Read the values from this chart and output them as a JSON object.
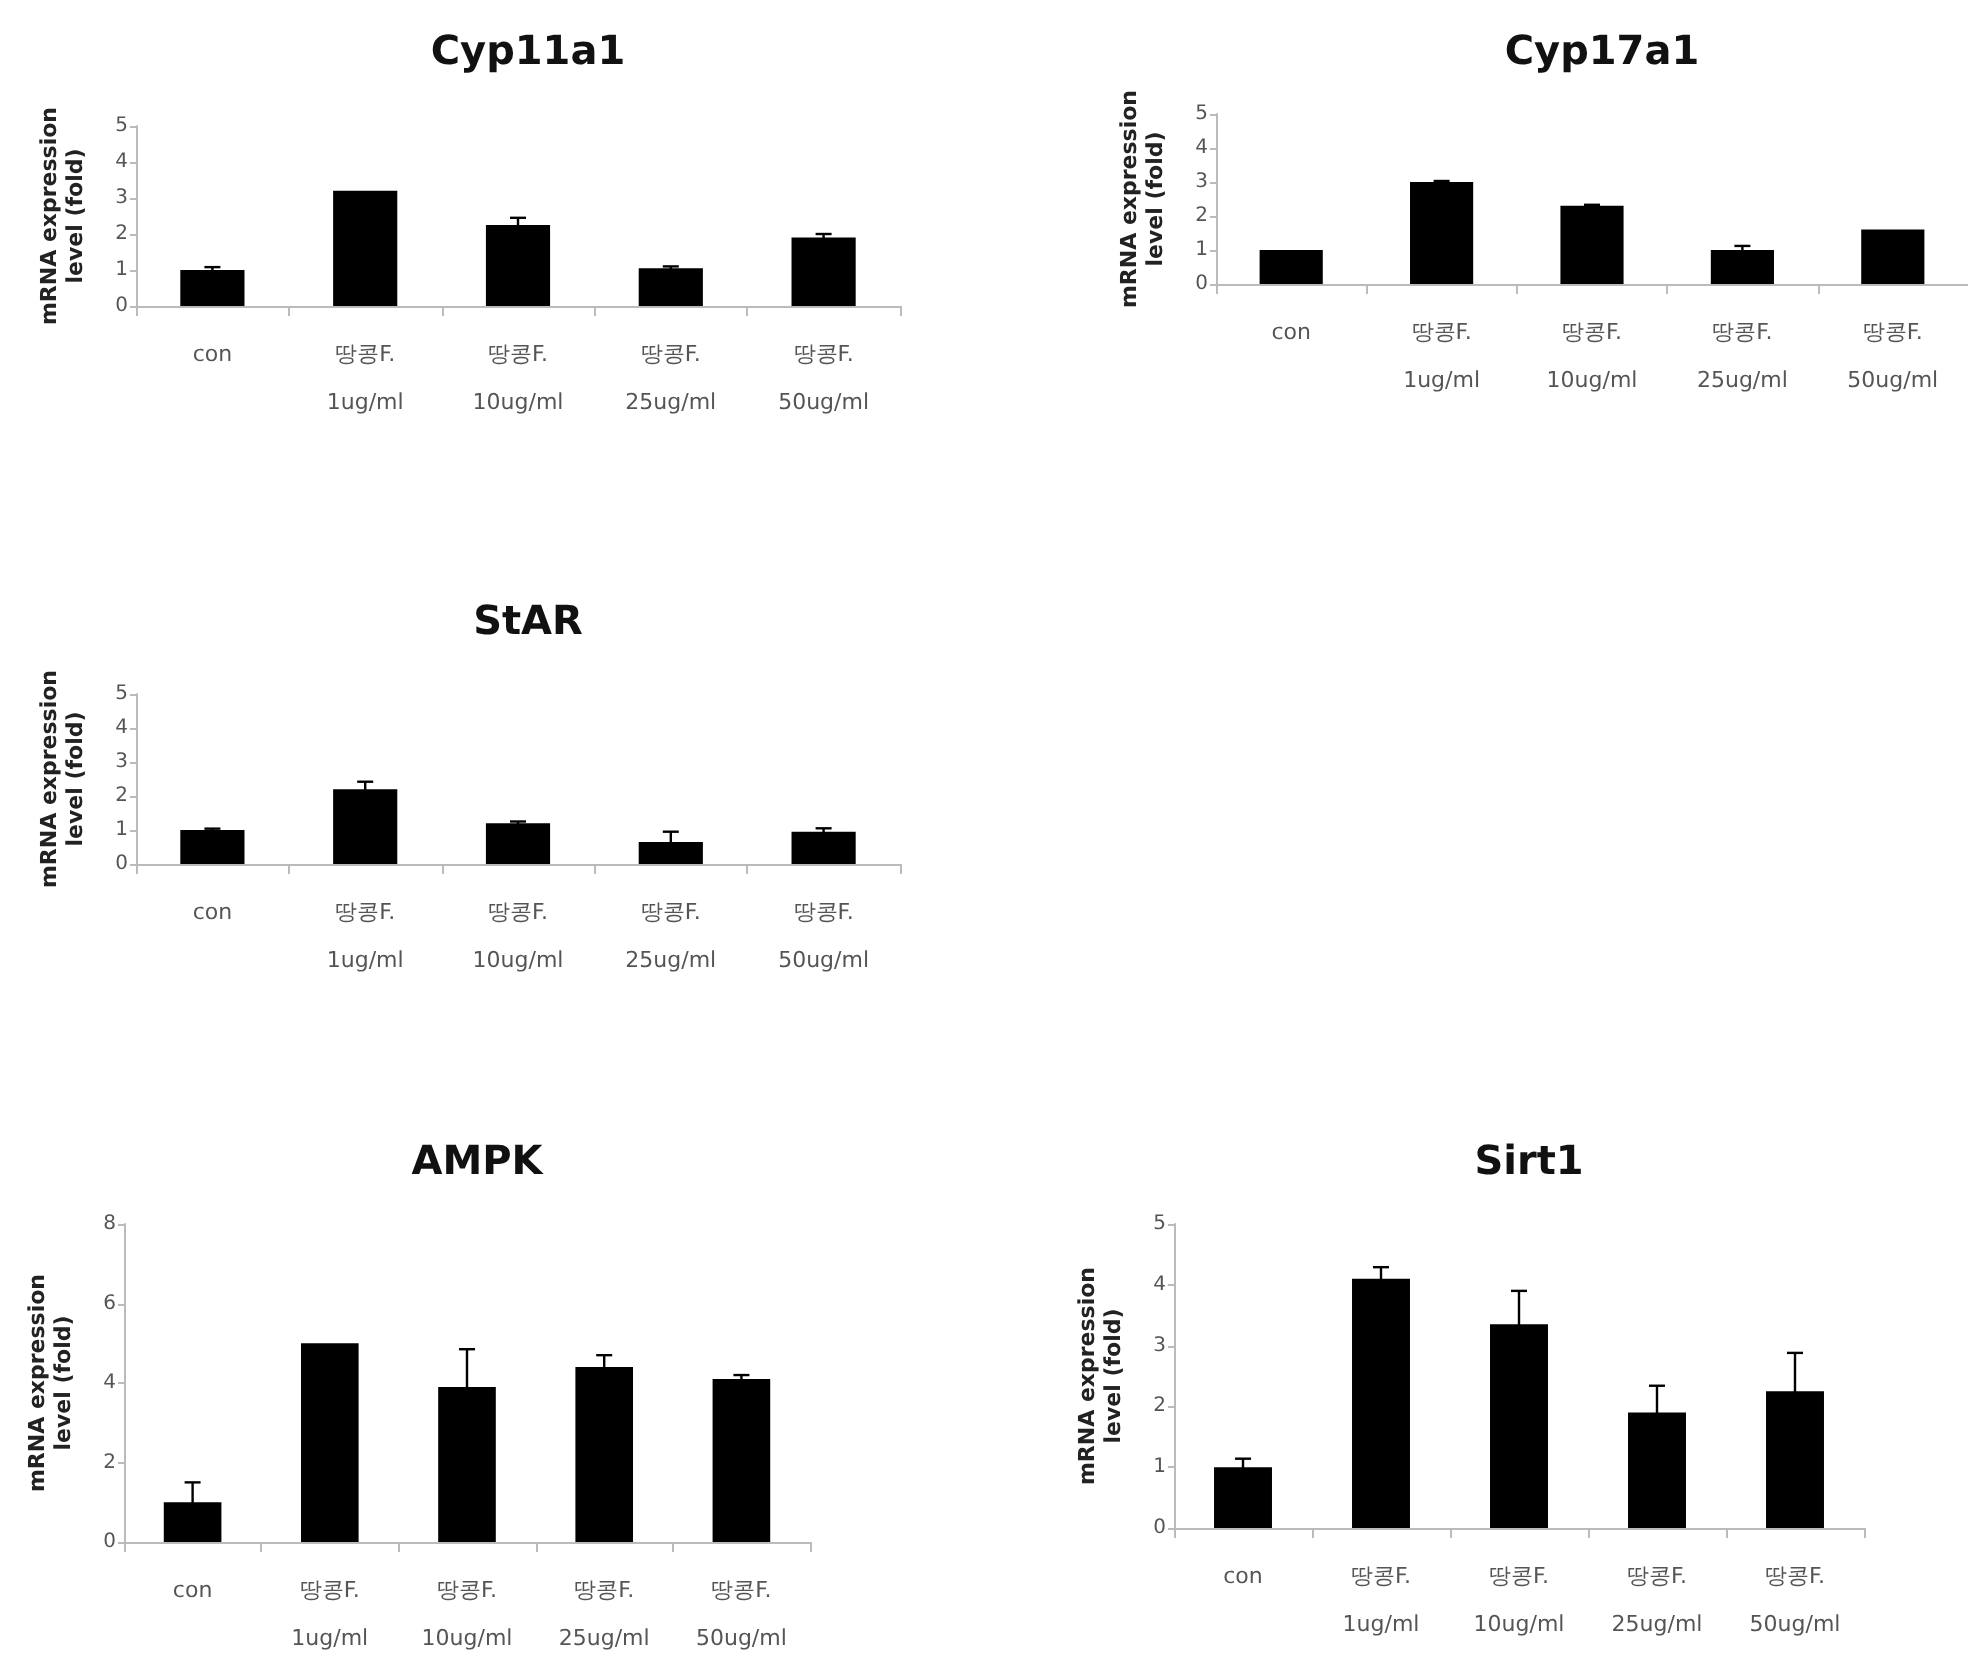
{
  "chart_data": [
    {
      "type": "bar",
      "title": "Cyp11a1",
      "ylabel": "mRNA expression\nlevel (fold)",
      "categories": [
        "con",
        "땅콩F.\n1ug/ml",
        "땅콩F.\n10ug/ml",
        "땅콩F.\n25ug/ml",
        "땅콩F.\n50ug/ml"
      ],
      "values": [
        1.0,
        3.2,
        2.25,
        1.05,
        1.9
      ],
      "errors": [
        0.08,
        null,
        0.2,
        0.05,
        0.1
      ],
      "color": "#000000",
      "ylim": [
        0,
        5
      ],
      "yticks": [
        0,
        1,
        2,
        3,
        4,
        5
      ]
    },
    {
      "type": "bar",
      "title": "Cyp17a1",
      "ylabel": "mRNA expression\nlevel (fold)",
      "categories": [
        "con",
        "땅콩F.\n1ug/ml",
        "땅콩F.\n10ug/ml",
        "땅콩F.\n25ug/ml",
        "땅콩F.\n50ug/ml"
      ],
      "values": [
        1.0,
        3.0,
        2.3,
        1.0,
        1.6
      ],
      "errors": [
        null,
        0.03,
        0.03,
        0.12,
        null
      ],
      "color": "#000000",
      "ylim": [
        0,
        5
      ],
      "yticks": [
        0,
        1,
        2,
        3,
        4,
        5
      ]
    },
    {
      "type": "bar",
      "title": "StAR",
      "ylabel": "mRNA expression\nlevel (fold)",
      "categories": [
        "con",
        "땅콩F.\n1ug/ml",
        "땅콩F.\n10ug/ml",
        "땅콩F.\n25ug/ml",
        "땅콩F.\n50ug/ml"
      ],
      "values": [
        1.0,
        2.2,
        1.2,
        0.65,
        0.95
      ],
      "errors": [
        0.04,
        0.22,
        0.05,
        0.3,
        0.1
      ],
      "color": "#000000",
      "ylim": [
        0,
        5
      ],
      "yticks": [
        0,
        1,
        2,
        3,
        4,
        5
      ]
    },
    {
      "type": "bar",
      "title": "AMPK",
      "ylabel": "mRNA expression\nlevel (fold)",
      "categories": [
        "con",
        "땅콩F.\n1ug/ml",
        "땅콩F.\n10ug/ml",
        "땅콩F.\n25ug/ml",
        "땅콩F.\n50ug/ml"
      ],
      "values": [
        1.0,
        5.0,
        3.9,
        4.4,
        4.1
      ],
      "errors": [
        0.5,
        null,
        0.95,
        0.3,
        0.1
      ],
      "color": "#000000",
      "ylim": [
        0,
        8
      ],
      "yticks": [
        0,
        2,
        4,
        6,
        8
      ]
    },
    {
      "type": "bar",
      "title": "Sirt1",
      "ylabel": "mRNA expression\nlevel (fold)",
      "categories": [
        "con",
        "땅콩F.\n1ug/ml",
        "땅콩F.\n10ug/ml",
        "땅콩F.\n25ug/ml",
        "땅콩F.\n50ug/ml"
      ],
      "values": [
        1.0,
        4.1,
        3.35,
        1.9,
        2.25
      ],
      "errors": [
        0.14,
        0.19,
        0.55,
        0.44,
        0.63
      ],
      "color": "#000000",
      "ylim": [
        0,
        5
      ],
      "yticks": [
        0,
        1,
        2,
        3,
        4,
        5
      ]
    }
  ]
}
